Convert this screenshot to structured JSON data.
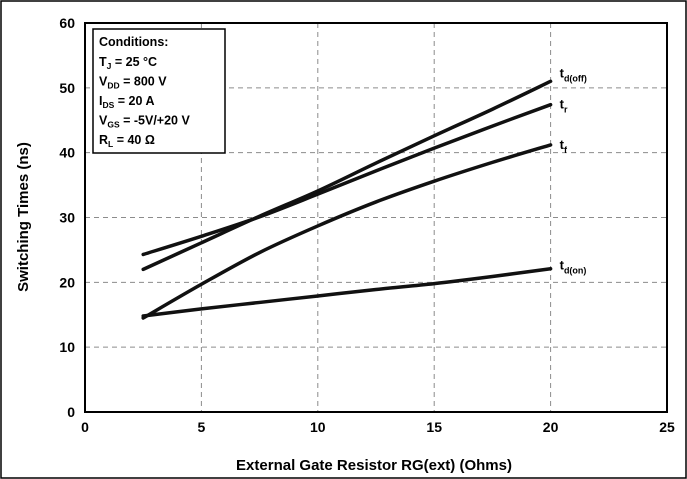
{
  "chart_data": {
    "type": "line",
    "title": "",
    "xlabel": "External Gate Resistor RG(ext) (Ohms)",
    "ylabel": "Switching Times (ns)",
    "xlim": [
      0,
      25
    ],
    "ylim": [
      0,
      60
    ],
    "xticks": [
      0,
      5,
      10,
      15,
      20,
      25
    ],
    "yticks": [
      0,
      10,
      20,
      30,
      40,
      50,
      60
    ],
    "grid": true,
    "series": [
      {
        "name": "t_d(off)",
        "label_main": "t",
        "label_sub": "d(off)",
        "color": "#111111",
        "x": [
          2.5,
          5,
          7.5,
          10,
          12.5,
          15,
          17.5,
          20
        ],
        "y": [
          22,
          26.1,
          30.2,
          34.1,
          38.4,
          42.6,
          46.7,
          51
        ]
      },
      {
        "name": "t_r",
        "label_main": "t",
        "label_sub": "r",
        "color": "#111111",
        "x": [
          2.5,
          5,
          7.5,
          10,
          12.5,
          15,
          17.5,
          20
        ],
        "y": [
          24.3,
          27.1,
          30.1,
          33.6,
          37.2,
          40.7,
          44.1,
          47.4
        ]
      },
      {
        "name": "t_f",
        "label_main": "t",
        "label_sub": "f",
        "color": "#111111",
        "x": [
          2.5,
          5,
          7.5,
          10,
          12.5,
          15,
          17.5,
          20
        ],
        "y": [
          14.5,
          19.7,
          24.6,
          28.7,
          32.4,
          35.6,
          38.5,
          41.2
        ]
      },
      {
        "name": "t_d(on)",
        "label_main": "t",
        "label_sub": "d(on)",
        "color": "#111111",
        "x": [
          2.5,
          5,
          7.5,
          10,
          12.5,
          15,
          17.5,
          20
        ],
        "y": [
          14.8,
          15.9,
          16.9,
          17.9,
          18.9,
          19.8,
          20.9,
          22.1
        ]
      }
    ],
    "annotations": {
      "conditions_title": "Conditions:",
      "conditions": [
        {
          "main": "T",
          "sub": "J",
          "rest": " = 25 °C"
        },
        {
          "main": "V",
          "sub": "DD",
          "rest": " = 800 V"
        },
        {
          "main": "I",
          "sub": "DS",
          "rest": " = 20 A"
        },
        {
          "main": "V",
          "sub": "GS",
          "rest": " = -5V/+20 V"
        },
        {
          "main": "R",
          "sub": "L",
          "rest": " = 40 Ω"
        }
      ]
    }
  }
}
